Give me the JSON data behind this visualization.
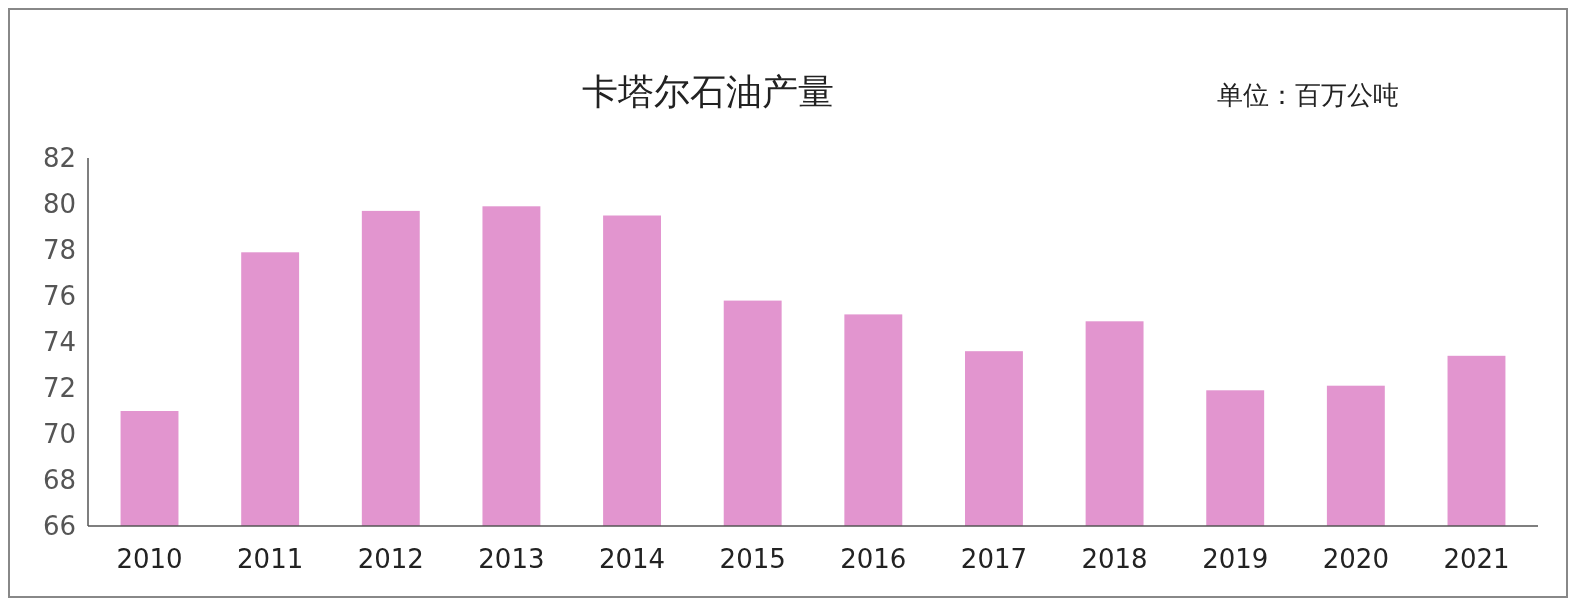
{
  "chart_data": {
    "type": "bar",
    "title": "卡塔尔石油产量",
    "annotations": [
      "单位：百万公吨"
    ],
    "categories": [
      "2010",
      "2011",
      "2012",
      "2013",
      "2014",
      "2015",
      "2016",
      "2017",
      "2018",
      "2019",
      "2020",
      "2021"
    ],
    "values": [
      71.0,
      77.9,
      79.7,
      79.9,
      79.5,
      75.8,
      75.2,
      73.6,
      74.9,
      71.9,
      72.1,
      73.4
    ],
    "color": "#e295cf",
    "ylim": [
      66,
      82
    ],
    "yticks": [
      66,
      68,
      70,
      72,
      74,
      76,
      78,
      80,
      82
    ],
    "grid": false
  }
}
